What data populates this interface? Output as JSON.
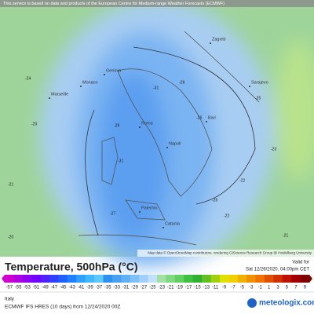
{
  "header": {
    "notice": "This service is based on data and products of the European Centre for Medium-range Weather Forecasts (ECMWF)"
  },
  "map": {
    "cities": [
      "Genova",
      "Monaco",
      "Marseille",
      "Roma",
      "Napoli",
      "Palermo",
      "Catania",
      "Zagreb",
      "Sarajevo",
      "Bari"
    ],
    "contour_labels": [
      -24,
      -23,
      -21,
      -20,
      -29,
      -31,
      -31,
      -28,
      -26,
      -25,
      -23,
      -22,
      -21,
      -27,
      -26,
      -22
    ],
    "attribution": "Map data © OpenStreetMap contributors, rendering GIScience Research Group @ Heidelberg University"
  },
  "legend": {
    "title": "Temperature, 500hPa (°C)",
    "valid_label": "Valid for",
    "valid_time": "Sat 12/26/2020, 04:00pm CET",
    "values": [
      -57,
      -55,
      -53,
      -51,
      -49,
      -47,
      -45,
      -43,
      -41,
      -39,
      -37,
      -35,
      -33,
      -31,
      -29,
      -27,
      -25,
      -23,
      -21,
      -19,
      -17,
      -15,
      -13,
      -11,
      -9,
      -7,
      -5,
      -3,
      -1,
      1,
      3,
      5,
      7,
      9
    ],
    "colors": [
      "#d000d0",
      "#b000e0",
      "#9000f0",
      "#7000ff",
      "#5020ff",
      "#3040ff",
      "#2060ff",
      "#2080ff",
      "#30a0ff",
      "#40b8ff",
      "#60c8ff",
      "#3090f0",
      "#4aa0f0",
      "#60b0f5",
      "#80c0f8",
      "#a0d0fa",
      "#c0e0fc",
      "#a0e0a0",
      "#80d880",
      "#60d060",
      "#40c040",
      "#30b030",
      "#60c020",
      "#a0d010",
      "#e0e000",
      "#f0d000",
      "#f0b000",
      "#f09000",
      "#f07000",
      "#e05000",
      "#d03000",
      "#c01000",
      "#a00000",
      "#800000"
    ]
  },
  "footer": {
    "region": "Italy",
    "model": "ECMWF IFS HRES (10 days) from 12/24/2020 00Z",
    "brand": "meteologix.com"
  }
}
